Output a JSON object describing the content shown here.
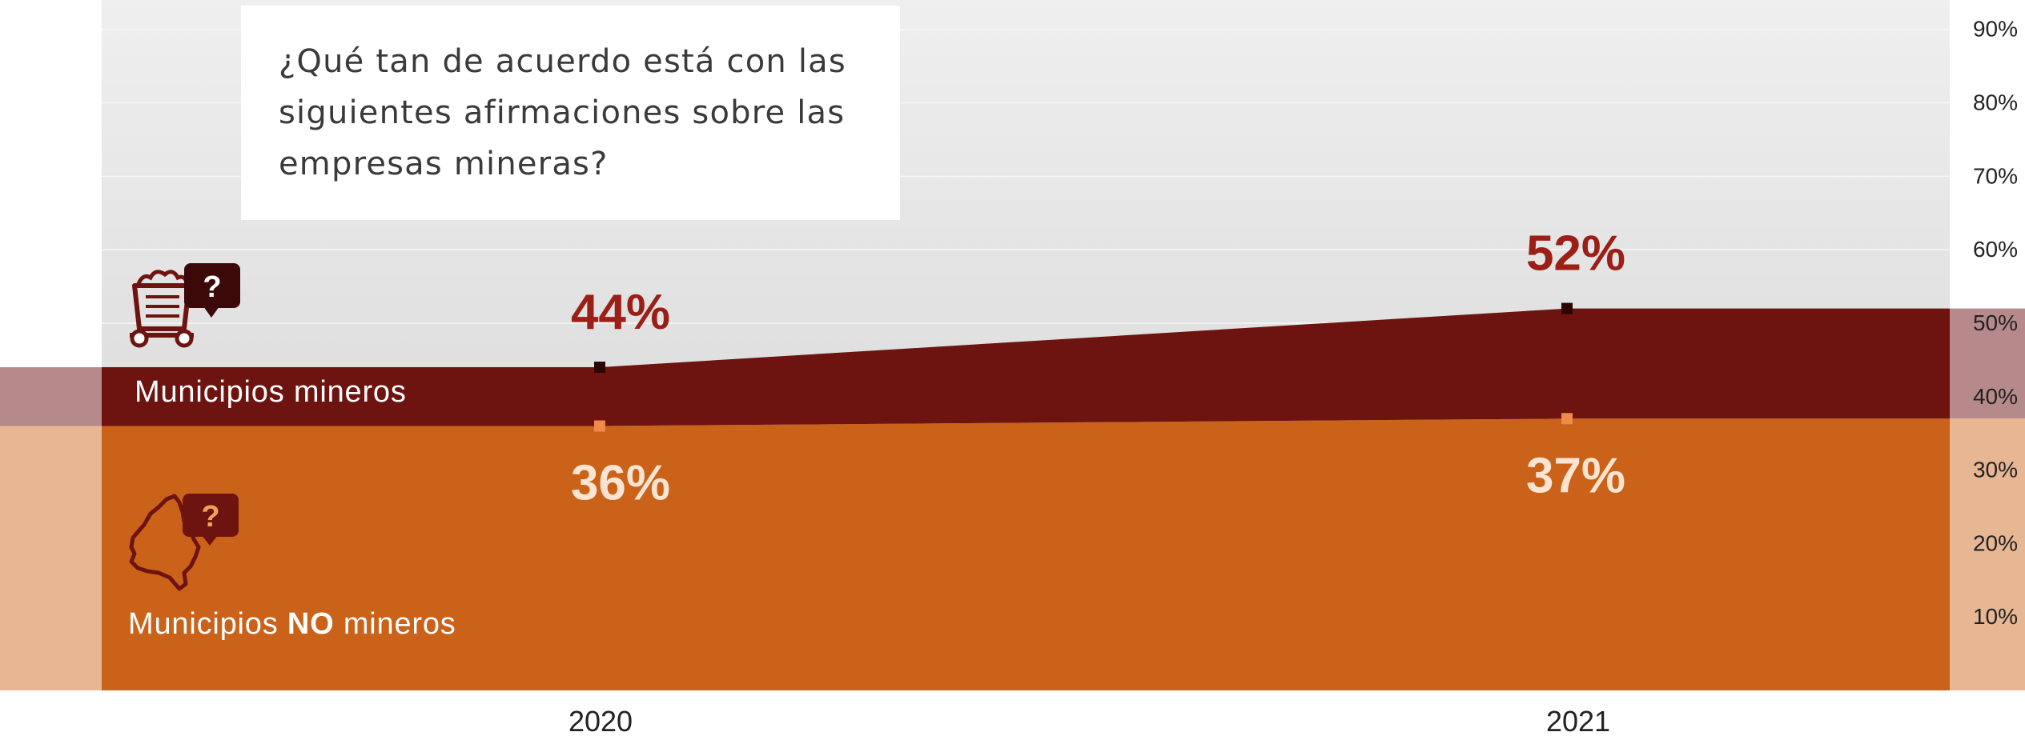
{
  "question": "¿Qué tan de acuerdo está con las siguientes afirmaciones sobre las empresas mineras?",
  "chart_data": {
    "type": "area",
    "x": [
      "2020",
      "2021"
    ],
    "series": [
      {
        "name": "Municipios mineros",
        "values": [
          44,
          52
        ],
        "data_labels": [
          "44%",
          "52%"
        ]
      },
      {
        "name": "Municipios NO mineros",
        "values": [
          36,
          37
        ],
        "data_labels": [
          "36%",
          "37%"
        ]
      }
    ],
    "y_ticks": [
      "10%",
      "20%",
      "30%",
      "40%",
      "50%",
      "60%",
      "70%",
      "80%",
      "90%"
    ],
    "y_tick_values": [
      10,
      20,
      30,
      40,
      50,
      60,
      70,
      80,
      90
    ],
    "ylim": [
      0,
      94
    ],
    "y_axis_side": "right",
    "grid": true,
    "legend": "left, inline labels with icons"
  },
  "labels": {
    "mineros": "Municipios mineros",
    "no_mineros_prefix": "Municipios ",
    "no_mineros_bold": "NO",
    "no_mineros_suffix": " mineros"
  },
  "icons": {
    "mineros": "mine-cart-question-icon",
    "no_mineros": "colombia-map-question-icon",
    "question_mark": "?"
  },
  "colors": {
    "mineros": "#6e1410",
    "no_mineros": "#cb6219",
    "mineros_label": "#9b1f16",
    "no_mineros_label": "#fbe4d2",
    "mineros_band": "#b68a8a",
    "no_mineros_band": "#e7b693"
  }
}
